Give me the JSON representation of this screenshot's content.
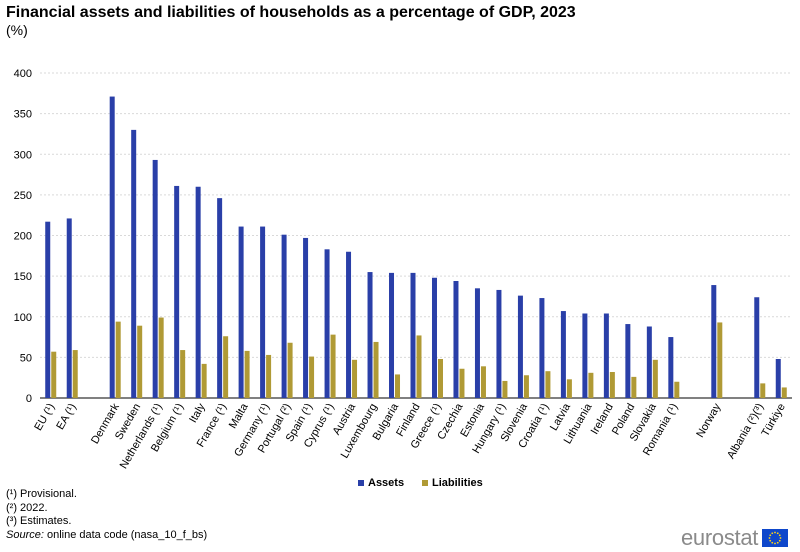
{
  "title": "Financial assets and liabilities of households as a percentage of GDP, 2023",
  "subtitle": "(%)",
  "chart_data": {
    "type": "bar",
    "title": "Financial assets and liabilities of households as a percentage of GDP, 2023",
    "ylabel": "%",
    "ylim": [
      0,
      400
    ],
    "yticks": [
      0,
      50,
      100,
      150,
      200,
      250,
      300,
      350,
      400
    ],
    "grid": true,
    "legend_position": "bottom-center",
    "categories": [
      "EU (¹)",
      "EA (¹)",
      "",
      "Denmark",
      "Sweden",
      "Netherlands (¹)",
      "Belgium (¹)",
      "Italy",
      "France (¹)",
      "Malta",
      "Germany (¹)",
      "Portugal (²)",
      "Spain (¹)",
      "Cyprus (¹)",
      "Austria",
      "Luxembourg",
      "Bulgaria",
      "Finland",
      "Greece (¹)",
      "Czechia",
      "Estonia",
      "Hungary (¹)",
      "Slovenia",
      "Croatia (¹)",
      "Latvia",
      "Lithuania",
      "Ireland",
      "Poland",
      "Slovakia",
      "Romania (¹)",
      "",
      "Norway",
      "",
      "Albania (²)(³)",
      "Türkiye"
    ],
    "series": [
      {
        "name": "Assets",
        "color": "#2a3fa8",
        "values": [
          217,
          221,
          null,
          371,
          330,
          293,
          261,
          260,
          246,
          211,
          211,
          201,
          197,
          183,
          180,
          155,
          154,
          154,
          148,
          144,
          135,
          133,
          126,
          123,
          107,
          104,
          104,
          91,
          88,
          75,
          null,
          139,
          null,
          124,
          48
        ]
      },
      {
        "name": "Liabilities",
        "color": "#b09a35",
        "values": [
          57,
          59,
          null,
          94,
          89,
          99,
          59,
          42,
          76,
          58,
          53,
          68,
          51,
          78,
          47,
          69,
          29,
          77,
          48,
          36,
          39,
          21,
          28,
          33,
          23,
          31,
          32,
          26,
          47,
          20,
          null,
          93,
          null,
          18,
          13
        ]
      }
    ]
  },
  "notes": {
    "provisional": "(¹) Provisional.",
    "year2022": "(²) 2022.",
    "estimates": "(³) Estimates.",
    "source_label": "Source:",
    "source_text": " online data code (nasa_10_f_bs)"
  },
  "logo": {
    "text": "eurostat",
    "flag_color": "#0e47cb",
    "star_color": "#ffd617"
  }
}
